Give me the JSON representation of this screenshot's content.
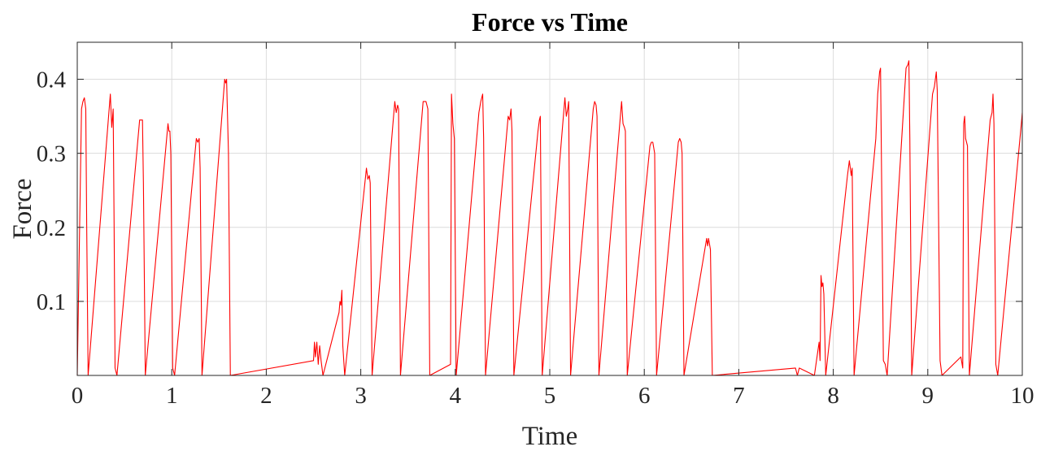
{
  "chart_data": {
    "type": "line",
    "title": "Force vs Time",
    "xlabel": "Time",
    "ylabel": "Force",
    "xlim": [
      0,
      10
    ],
    "ylim": [
      0,
      0.45
    ],
    "x_ticks": [
      0,
      1,
      2,
      3,
      4,
      5,
      6,
      7,
      8,
      9,
      10
    ],
    "y_ticks": [
      0.1,
      0.2,
      0.3,
      0.4
    ],
    "grid": true,
    "legend": "none",
    "line_color": "#ff0000",
    "series": [
      {
        "x": [
          0,
          0.045,
          0.06,
          0.075,
          0.09,
          0.1,
          0.115,
          0.35,
          0.365,
          0.38,
          0.39,
          0.4,
          0.42,
          0.66,
          0.675,
          0.69,
          0.7,
          0.72,
          0.96,
          0.97,
          0.98,
          0.99,
          1.01,
          1.03,
          1.26,
          1.275,
          1.29,
          1.3,
          1.32,
          1.56,
          1.57,
          1.58,
          1.6,
          1.62,
          2.5,
          2.51,
          2.52,
          2.535,
          2.55,
          2.565,
          2.58,
          2.6,
          2.77,
          2.78,
          2.79,
          2.8,
          2.81,
          2.83,
          3.06,
          3.075,
          3.09,
          3.1,
          3.12,
          3.36,
          3.375,
          3.39,
          3.4,
          3.42,
          3.66,
          3.675,
          3.69,
          3.71,
          3.73,
          3.95,
          3.96,
          3.975,
          3.99,
          4.01,
          4.25,
          4.27,
          4.29,
          4.3,
          4.32,
          4.56,
          4.575,
          4.59,
          4.6,
          4.62,
          4.86,
          4.875,
          4.89,
          4.9,
          4.92,
          5.16,
          5.175,
          5.19,
          5.2,
          5.22,
          5.46,
          5.475,
          5.49,
          5.5,
          5.52,
          5.76,
          5.775,
          5.79,
          5.8,
          5.82,
          6.06,
          6.075,
          6.09,
          6.11,
          6.13,
          6.36,
          6.375,
          6.39,
          6.4,
          6.42,
          6.66,
          6.67,
          6.68,
          6.7,
          6.72,
          7.6,
          7.62,
          7.64,
          7.8,
          7.85,
          7.86,
          7.87,
          7.88,
          7.89,
          7.9,
          7.92,
          8.15,
          8.17,
          8.19,
          8.2,
          8.22,
          8.45,
          8.47,
          8.49,
          8.5,
          8.53,
          8.55,
          8.57,
          8.77,
          8.79,
          8.8,
          8.81,
          8.83,
          9.05,
          9.07,
          9.09,
          9.1,
          9.13,
          9.15,
          9.35,
          9.37,
          9.38,
          9.39,
          9.4,
          9.42,
          9.44,
          9.66,
          9.67,
          9.68,
          9.69,
          9.7,
          9.72,
          9.74,
          9.99,
          10
        ],
        "y": [
          0,
          0.36,
          0.37,
          0.375,
          0.36,
          0.2,
          0,
          0.38,
          0.335,
          0.36,
          0.2,
          0.01,
          0,
          0.345,
          0.345,
          0.345,
          0.26,
          0,
          0.34,
          0.33,
          0.33,
          0.3,
          0.01,
          0,
          0.32,
          0.315,
          0.32,
          0.28,
          0,
          0.4,
          0.395,
          0.4,
          0.3,
          0,
          0.02,
          0.045,
          0.025,
          0.045,
          0.015,
          0.04,
          0.02,
          0,
          0.085,
          0.1,
          0.095,
          0.115,
          0.04,
          0,
          0.28,
          0.265,
          0.27,
          0.26,
          0,
          0.37,
          0.355,
          0.365,
          0.36,
          0,
          0.37,
          0.37,
          0.37,
          0.36,
          0,
          0.015,
          0.38,
          0.34,
          0.32,
          0,
          0.355,
          0.37,
          0.38,
          0.32,
          0,
          0.35,
          0.345,
          0.36,
          0.33,
          0,
          0.31,
          0.33,
          0.345,
          0.35,
          0,
          0.375,
          0.35,
          0.36,
          0.37,
          0,
          0.36,
          0.37,
          0.365,
          0.35,
          0,
          0.37,
          0.34,
          0.335,
          0.33,
          0,
          0.31,
          0.315,
          0.315,
          0.3,
          0,
          0.315,
          0.32,
          0.315,
          0.3,
          0,
          0.185,
          0.175,
          0.185,
          0.17,
          0,
          0.01,
          0,
          0.01,
          0,
          0.045,
          0.02,
          0.135,
          0.12,
          0.125,
          0.11,
          0,
          0.27,
          0.29,
          0.27,
          0.28,
          0,
          0.32,
          0.38,
          0.41,
          0.415,
          0.02,
          0.015,
          0,
          0.415,
          0.42,
          0.425,
          0.32,
          0,
          0.38,
          0.39,
          0.41,
          0.385,
          0.02,
          0,
          0.025,
          0.01,
          0.34,
          0.35,
          0.32,
          0.31,
          0,
          0.345,
          0.35,
          0.355,
          0.38,
          0.34,
          0.015,
          0,
          0.34,
          0.355
        ]
      }
    ]
  }
}
